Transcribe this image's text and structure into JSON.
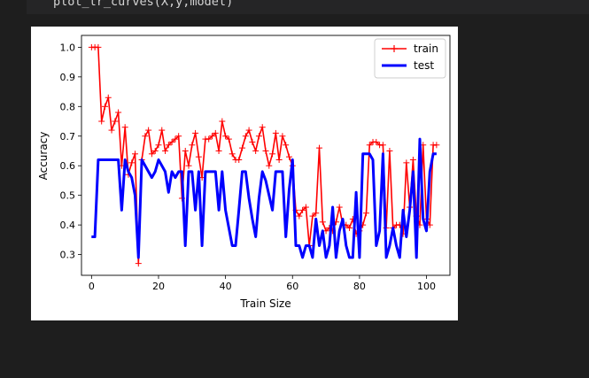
{
  "cell": {
    "code_line": "plot_lr_curves(X,y,model)"
  },
  "chart_data": {
    "type": "line",
    "xlabel": "Train Size",
    "ylabel": "Accuracy",
    "xlim": [
      -3,
      107
    ],
    "ylim": [
      0.23,
      1.04
    ],
    "xticks": [
      0,
      20,
      40,
      60,
      80,
      100
    ],
    "yticks": [
      0.3,
      0.4,
      0.5,
      0.6,
      0.7,
      0.8,
      0.9,
      1.0
    ],
    "xtick_labels": [
      "0",
      "20",
      "40",
      "60",
      "80",
      "100"
    ],
    "ytick_labels": [
      "0.3",
      "0.4",
      "0.5",
      "0.6",
      "0.7",
      "0.8",
      "0.9",
      "1.0"
    ],
    "grid": false,
    "legend_position": "top-right",
    "series": [
      {
        "name": "train",
        "color": "#ff0000",
        "marker": "+",
        "x": [
          0,
          1,
          2,
          3,
          4,
          5,
          6,
          7,
          8,
          9,
          10,
          11,
          12,
          13,
          14,
          15,
          16,
          17,
          18,
          19,
          20,
          21,
          22,
          23,
          24,
          25,
          26,
          27,
          28,
          29,
          30,
          31,
          32,
          33,
          34,
          35,
          36,
          37,
          38,
          39,
          40,
          41,
          42,
          43,
          44,
          45,
          46,
          47,
          48,
          49,
          50,
          51,
          52,
          53,
          54,
          55,
          56,
          57,
          58,
          59,
          60,
          61,
          62,
          63,
          64,
          65,
          66,
          67,
          68,
          69,
          70,
          71,
          72,
          73,
          74,
          75,
          76,
          77,
          78,
          79,
          80,
          81,
          82,
          83,
          84,
          85,
          86,
          87,
          88,
          89,
          90,
          91,
          92,
          93,
          94,
          95,
          96,
          97,
          98,
          99,
          100,
          101,
          102,
          103
        ],
        "values": [
          1.0,
          1.0,
          1.0,
          0.75,
          0.8,
          0.83,
          0.72,
          0.75,
          0.78,
          0.6,
          0.73,
          0.57,
          0.61,
          0.64,
          0.27,
          0.62,
          0.7,
          0.72,
          0.64,
          0.65,
          0.67,
          0.72,
          0.65,
          0.67,
          0.68,
          0.69,
          0.7,
          0.49,
          0.65,
          0.6,
          0.67,
          0.71,
          0.63,
          0.56,
          0.69,
          0.69,
          0.7,
          0.71,
          0.65,
          0.75,
          0.7,
          0.69,
          0.64,
          0.62,
          0.62,
          0.66,
          0.7,
          0.72,
          0.68,
          0.65,
          0.7,
          0.73,
          0.65,
          0.6,
          0.64,
          0.71,
          0.62,
          0.7,
          0.67,
          0.63,
          0.6,
          0.45,
          0.43,
          0.45,
          0.46,
          0.33,
          0.43,
          0.44,
          0.66,
          0.41,
          0.38,
          0.39,
          0.38,
          0.41,
          0.46,
          0.4,
          0.4,
          0.39,
          0.42,
          0.37,
          0.38,
          0.4,
          0.44,
          0.67,
          0.68,
          0.68,
          0.67,
          0.67,
          0.39,
          0.65,
          0.39,
          0.4,
          0.4,
          0.37,
          0.61,
          0.46,
          0.62,
          0.43,
          0.4,
          0.67,
          0.42,
          0.4,
          0.67,
          0.67
        ]
      },
      {
        "name": "test",
        "color": "#0000ff",
        "x": [
          0,
          1,
          2,
          3,
          4,
          5,
          6,
          7,
          8,
          9,
          10,
          11,
          12,
          13,
          14,
          15,
          16,
          17,
          18,
          19,
          20,
          21,
          22,
          23,
          24,
          25,
          26,
          27,
          28,
          29,
          30,
          31,
          32,
          33,
          34,
          35,
          36,
          37,
          38,
          39,
          40,
          41,
          42,
          43,
          44,
          45,
          46,
          47,
          48,
          49,
          50,
          51,
          52,
          53,
          54,
          55,
          56,
          57,
          58,
          59,
          60,
          61,
          62,
          63,
          64,
          65,
          66,
          67,
          68,
          69,
          70,
          71,
          72,
          73,
          74,
          75,
          76,
          77,
          78,
          79,
          80,
          81,
          82,
          83,
          84,
          85,
          86,
          87,
          88,
          89,
          90,
          91,
          92,
          93,
          94,
          95,
          96,
          97,
          98,
          99,
          100,
          101,
          102,
          103
        ],
        "values": [
          0.36,
          0.36,
          0.62,
          0.62,
          0.62,
          0.62,
          0.62,
          0.62,
          0.62,
          0.45,
          0.62,
          0.58,
          0.56,
          0.5,
          0.29,
          0.62,
          0.6,
          0.58,
          0.56,
          0.58,
          0.62,
          0.6,
          0.58,
          0.51,
          0.58,
          0.56,
          0.58,
          0.58,
          0.33,
          0.58,
          0.58,
          0.45,
          0.58,
          0.33,
          0.58,
          0.58,
          0.58,
          0.58,
          0.45,
          0.58,
          0.45,
          0.39,
          0.33,
          0.33,
          0.45,
          0.58,
          0.58,
          0.49,
          0.42,
          0.36,
          0.49,
          0.58,
          0.55,
          0.5,
          0.45,
          0.58,
          0.58,
          0.58,
          0.36,
          0.52,
          0.62,
          0.33,
          0.33,
          0.29,
          0.33,
          0.33,
          0.29,
          0.42,
          0.33,
          0.38,
          0.29,
          0.33,
          0.46,
          0.29,
          0.38,
          0.42,
          0.33,
          0.29,
          0.29,
          0.51,
          0.29,
          0.64,
          0.64,
          0.64,
          0.62,
          0.33,
          0.38,
          0.64,
          0.29,
          0.33,
          0.39,
          0.33,
          0.29,
          0.45,
          0.36,
          0.45,
          0.58,
          0.29,
          0.69,
          0.42,
          0.38,
          0.58,
          0.64,
          0.64
        ]
      }
    ]
  }
}
